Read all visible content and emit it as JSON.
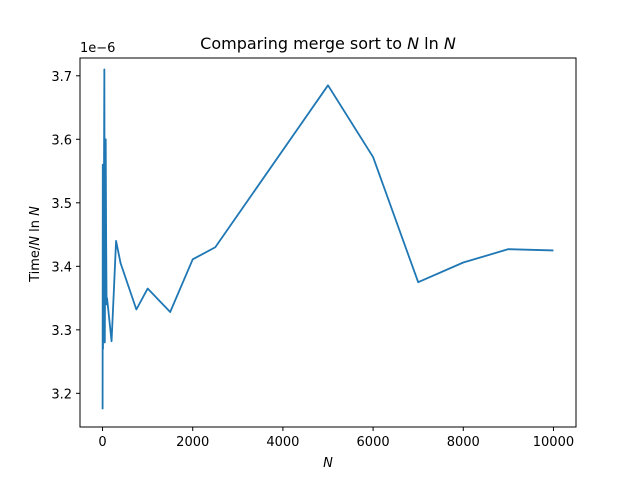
{
  "chart_data": {
    "type": "line",
    "title": "Comparing merge sort to N ln N",
    "xlabel": "N",
    "ylabel": "Time/N ln N",
    "offset_label": "1e−6",
    "xlim": [
      -500,
      10500
    ],
    "ylim": [
      3.147e-06,
      3.728e-06
    ],
    "x_ticks": [
      0,
      2000,
      4000,
      6000,
      8000,
      10000
    ],
    "x_tick_labels": [
      "0",
      "2000",
      "4000",
      "6000",
      "8000",
      "10000"
    ],
    "y_ticks": [
      3.2e-06,
      3.3e-06,
      3.4e-06,
      3.5e-06,
      3.6e-06,
      3.7e-06
    ],
    "y_tick_labels": [
      "3.2",
      "3.3",
      "3.4",
      "3.5",
      "3.6",
      "3.7"
    ],
    "grid": false,
    "legend": "none",
    "series": [
      {
        "color": "#1f77b4",
        "x": [
          1,
          5,
          10,
          20,
          30,
          40,
          50,
          60,
          70,
          80,
          90,
          100,
          200,
          250,
          300,
          400,
          750,
          1000,
          1500,
          2000,
          2500,
          5000,
          6000,
          7000,
          8000,
          9000,
          10000
        ],
        "y": [
          3.175e-06,
          3.56e-06,
          3.27e-06,
          3.555e-06,
          3.5e-06,
          3.71e-06,
          3.28e-06,
          3.45e-06,
          3.6e-06,
          3.44e-06,
          3.34e-06,
          3.35e-06,
          3.282e-06,
          3.36e-06,
          3.44e-06,
          3.405e-06,
          3.332e-06,
          3.365e-06,
          3.328e-06,
          3.411e-06,
          3.43e-06,
          3.685e-06,
          3.572e-06,
          3.375e-06,
          3.406e-06,
          3.427e-06,
          3.425e-06
        ]
      }
    ]
  }
}
